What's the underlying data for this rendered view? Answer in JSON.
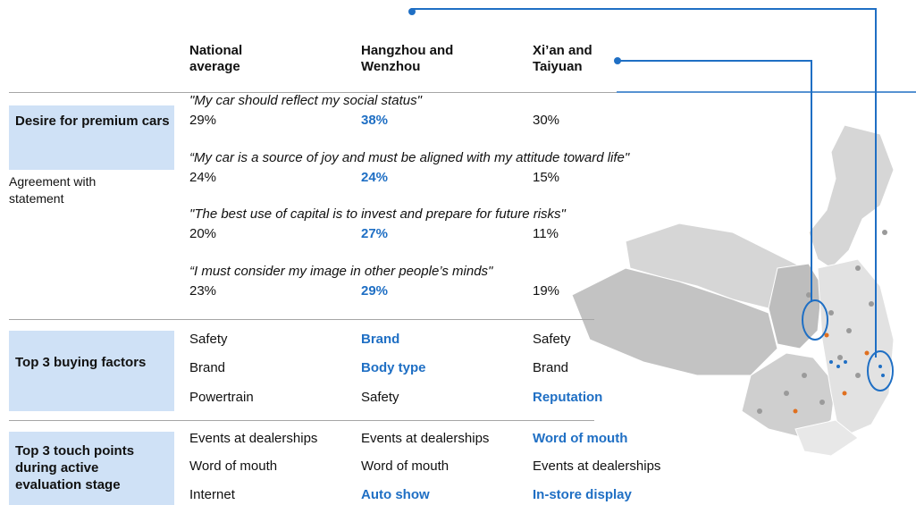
{
  "columns": [
    "National average",
    "Hangzhou and Wenzhou",
    "Xi’an and Taiyuan"
  ],
  "sections": [
    {
      "label": "Desire for premium cars",
      "sublabel": "Agreement with statement",
      "statements": [
        {
          "quote": "\"My car should reflect my social status\"",
          "values": [
            "29%",
            "38%",
            "30%"
          ],
          "highlight": [
            1
          ]
        },
        {
          "quote": "“My car is a source of joy and must be aligned with my attitude toward life\"",
          "values": [
            "24%",
            "24%",
            "15%"
          ],
          "highlight": [
            1
          ]
        },
        {
          "quote": "\"The best use of capital is to invest and prepare for future risks\"",
          "values": [
            "20%",
            "27%",
            "11%"
          ],
          "highlight": [
            1
          ]
        },
        {
          "quote": "“I must consider my image in other people’s minds\"",
          "values": [
            "23%",
            "29%",
            "19%"
          ],
          "highlight": [
            1
          ]
        }
      ]
    },
    {
      "label": "Top 3 buying factors",
      "rows": [
        {
          "values": [
            "Safety",
            "Brand",
            "Safety"
          ],
          "highlight": [
            1
          ]
        },
        {
          "values": [
            "Brand",
            "Body type",
            "Brand"
          ],
          "highlight": [
            1
          ]
        },
        {
          "values": [
            "Powertrain",
            "Safety",
            "Reputation"
          ],
          "highlight": [
            2
          ]
        }
      ]
    },
    {
      "label": "Top 3 touch points during active evaluation stage",
      "rows": [
        {
          "values": [
            "Events at dealerships",
            "Events at dealerships",
            "Word of mouth"
          ],
          "highlight": [
            2
          ]
        },
        {
          "values": [
            "Word of mouth",
            "Word of mouth",
            "Events at dealerships"
          ],
          "highlight": []
        },
        {
          "values": [
            "Internet",
            "Auto show",
            "In-store display"
          ],
          "highlight": [
            1,
            2
          ]
        }
      ]
    }
  ]
}
